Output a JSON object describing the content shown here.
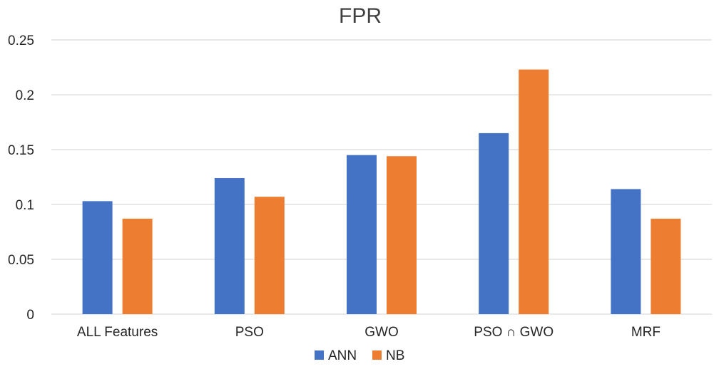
{
  "chart_data": {
    "type": "bar",
    "title": "FPR",
    "xlabel": "",
    "ylabel": "",
    "categories": [
      "ALL Features",
      "PSO",
      "GWO",
      "PSO ∩ GWO",
      "MRF"
    ],
    "series": [
      {
        "name": "ANN",
        "color": "#4472C4",
        "values": [
          0.103,
          0.124,
          0.145,
          0.165,
          0.114
        ]
      },
      {
        "name": "NB",
        "color": "#ED7D31",
        "values": [
          0.087,
          0.107,
          0.144,
          0.223,
          0.087
        ]
      }
    ],
    "ylim": [
      0,
      0.25
    ],
    "yticks": [
      "0",
      "0.05",
      "0.1",
      "0.15",
      "0.2",
      "0.25"
    ],
    "grid": true,
    "legend": "bottom-center"
  }
}
